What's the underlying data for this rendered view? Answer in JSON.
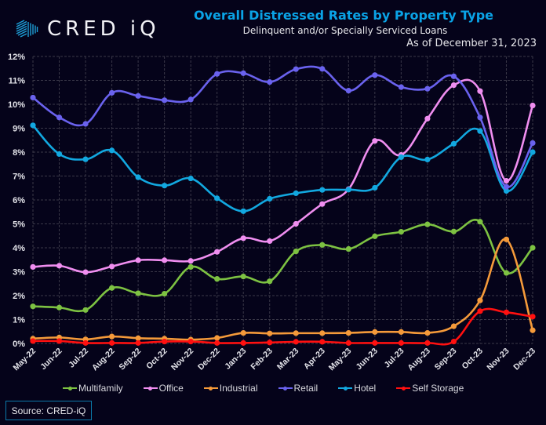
{
  "logo": {
    "text": "CRED iQ",
    "icon": "cube-stripes-icon",
    "color": "#1e9fd8"
  },
  "header": {
    "title": "Overall Distressed Rates by Property Type",
    "subtitle": "Delinquent and/or Specially Serviced Loans",
    "as_of": "As of December 31, 2023"
  },
  "source_label": "Source:  CRED-iQ",
  "chart_data": {
    "type": "line",
    "title": "Overall Distressed Rates by Property Type",
    "subtitle": "Delinquent and/or Specially Serviced Loans",
    "xlabel": "",
    "ylabel": "",
    "ylim": [
      0,
      12
    ],
    "yticks": [
      "0%",
      "1%",
      "2%",
      "3%",
      "4%",
      "5%",
      "6%",
      "7%",
      "8%",
      "9%",
      "10%",
      "11%",
      "12%"
    ],
    "grid": true,
    "legend_position": "bottom",
    "categories": [
      "May-22",
      "Jun-22",
      "Jul-22",
      "Aug-22",
      "Sep-22",
      "Oct-22",
      "Nov-22",
      "Dec-22",
      "Jan-23",
      "Feb-23",
      "Mar-23",
      "Apr-23",
      "May-23",
      "Jun-23",
      "Jul-23",
      "Aug-23",
      "Sep-23",
      "Oct-23",
      "Nov-23",
      "Dec-23"
    ],
    "series": [
      {
        "name": "Multifamily",
        "color": "#7dc242",
        "values": [
          1.55,
          1.5,
          1.4,
          2.32,
          2.1,
          2.08,
          3.2,
          2.7,
          2.8,
          2.6,
          3.85,
          4.12,
          3.95,
          4.48,
          4.67,
          4.98,
          4.68,
          5.09,
          2.95,
          4.0
        ]
      },
      {
        "name": "Office",
        "color": "#f08ef0",
        "values": [
          3.2,
          3.25,
          2.98,
          3.22,
          3.48,
          3.48,
          3.45,
          3.83,
          4.4,
          4.28,
          5.0,
          5.83,
          6.45,
          8.47,
          7.88,
          9.4,
          10.8,
          10.55,
          6.8,
          9.95
        ]
      },
      {
        "name": "Industrial",
        "color": "#f59a3a",
        "values": [
          0.2,
          0.25,
          0.17,
          0.29,
          0.22,
          0.2,
          0.16,
          0.23,
          0.44,
          0.42,
          0.43,
          0.43,
          0.44,
          0.48,
          0.48,
          0.44,
          0.72,
          1.8,
          4.35,
          0.55
        ]
      },
      {
        "name": "Retail",
        "color": "#6a62ee",
        "values": [
          10.28,
          9.45,
          9.18,
          10.48,
          10.35,
          10.17,
          10.2,
          11.27,
          11.3,
          10.93,
          11.47,
          11.48,
          10.57,
          11.22,
          10.72,
          10.65,
          11.17,
          9.45,
          6.55,
          8.38
        ]
      },
      {
        "name": "Hotel",
        "color": "#12a8e0",
        "values": [
          9.12,
          7.92,
          7.7,
          8.07,
          6.95,
          6.6,
          6.9,
          6.07,
          5.53,
          6.05,
          6.28,
          6.42,
          6.43,
          6.51,
          7.79,
          7.69,
          8.35,
          8.88,
          6.38,
          8.0
        ]
      },
      {
        "name": "Self Storage",
        "color": "#ff1010",
        "values": [
          0.1,
          0.1,
          0.02,
          0.02,
          0.02,
          0.08,
          0.08,
          0.02,
          0.02,
          0.04,
          0.07,
          0.07,
          0.02,
          0.02,
          0.02,
          0.02,
          0.08,
          1.35,
          1.3,
          1.12
        ]
      }
    ]
  }
}
